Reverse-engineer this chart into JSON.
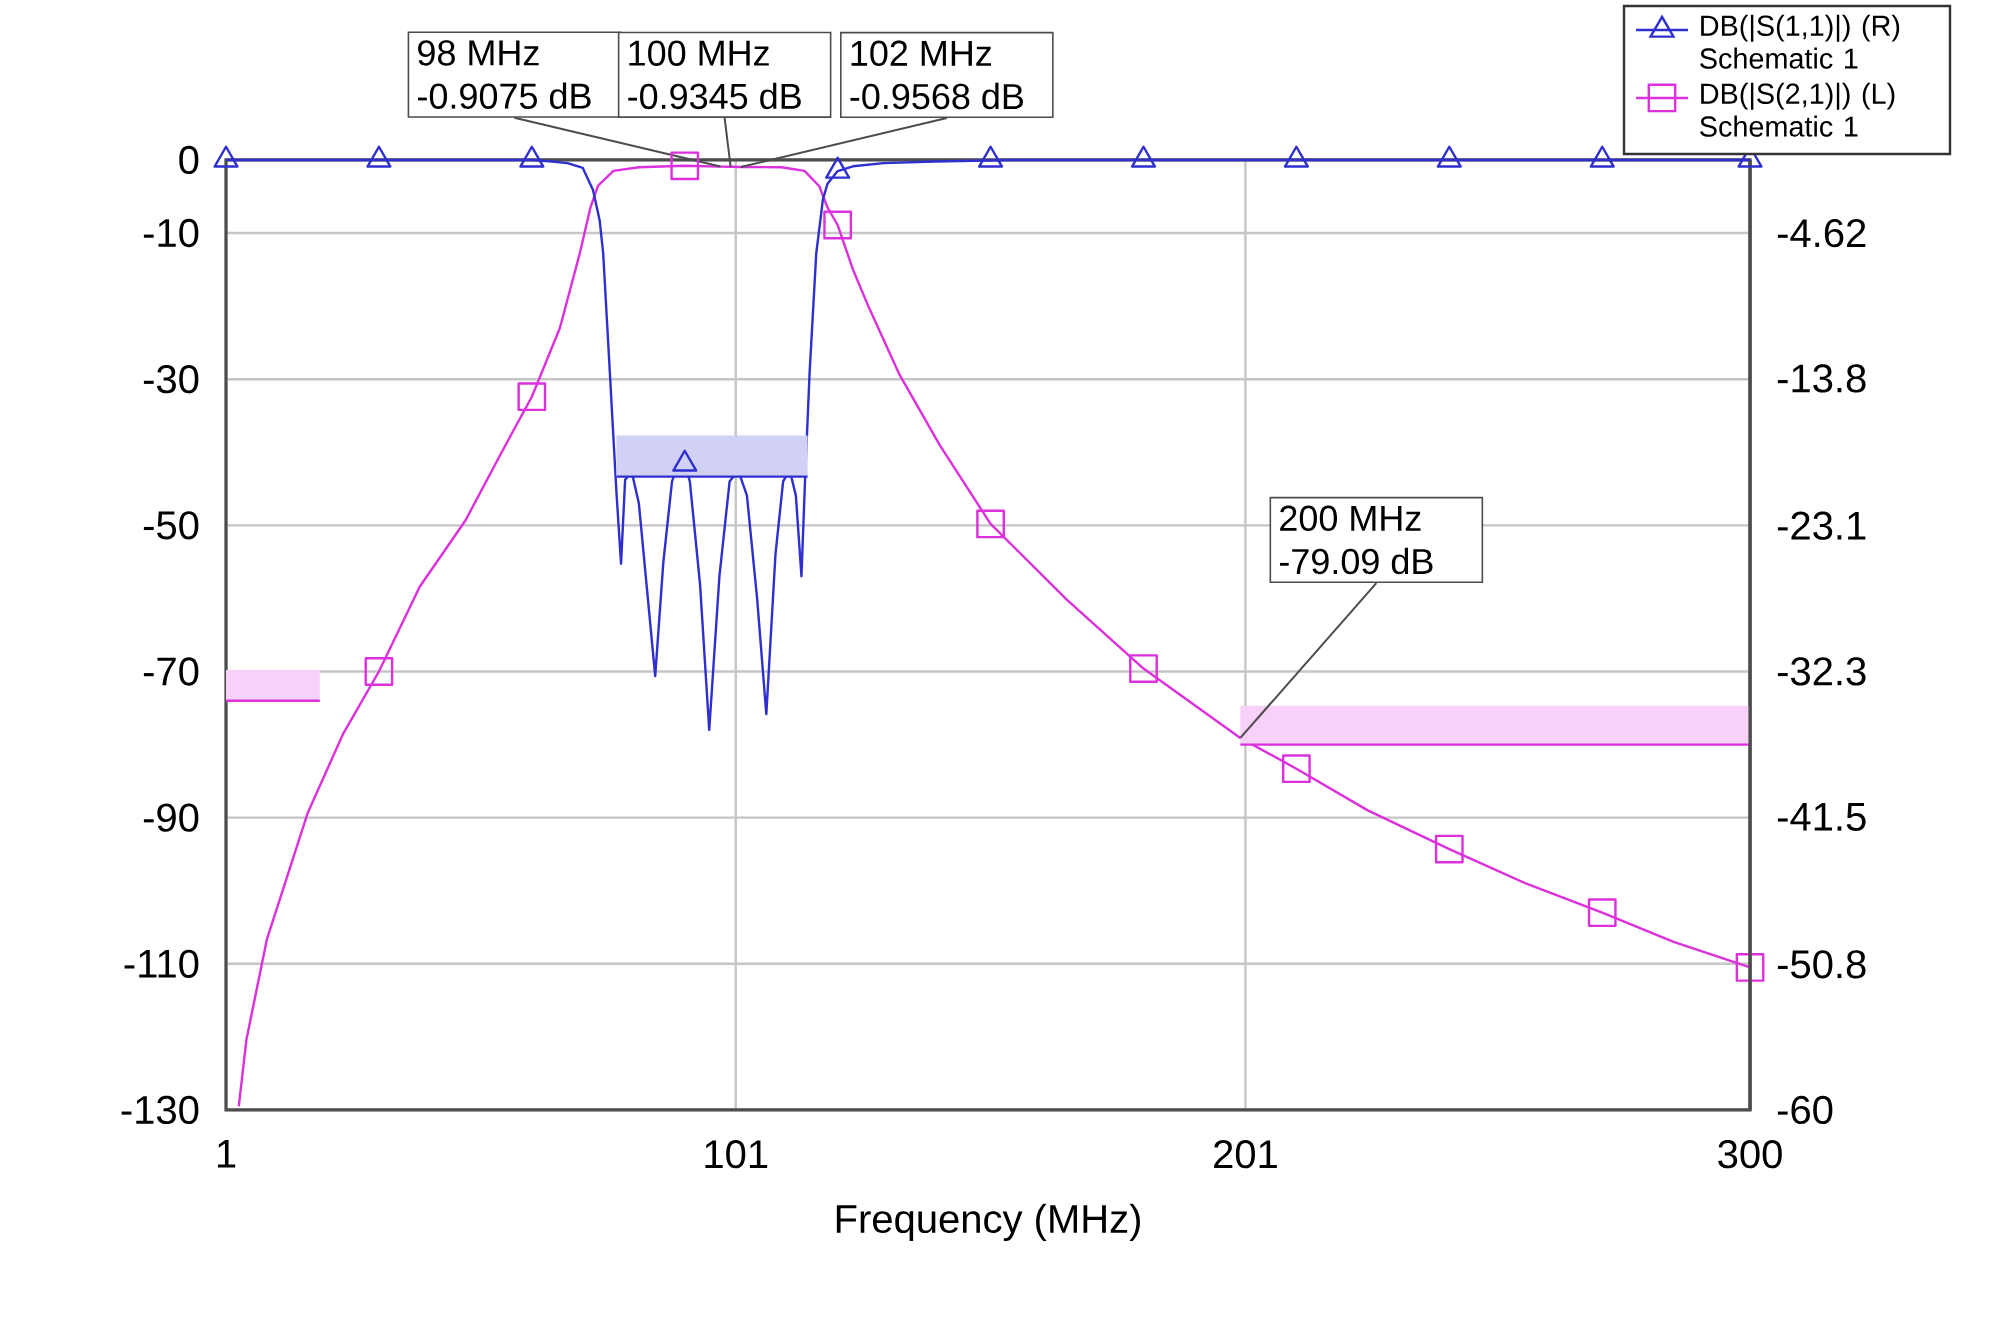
{
  "chart_data": {
    "type": "line",
    "xlabel": "Frequency (MHz)",
    "xlim": [
      1,
      300
    ],
    "xticks": [
      1,
      101,
      201,
      300
    ],
    "ylim": [
      -130,
      0
    ],
    "yticks": [
      -130,
      -110,
      -90,
      -70,
      -50,
      -30,
      -10,
      0
    ],
    "y2lim": [
      -60,
      0
    ],
    "y2ticks": [
      -60,
      -50.8,
      -41.5,
      -32.3,
      -23.1,
      -13.8,
      -4.62
    ],
    "grid": true,
    "legend": "top right",
    "series": [
      {
        "name": "DB(|S(1,1)|) (R) Schematic 1",
        "color": "#2f2fd0",
        "axis": "y2",
        "x": [
          1,
          31,
          61,
          65,
          68,
          71,
          73,
          74.3,
          75,
          75.5,
          76.3,
          77,
          77.6,
          78.5,
          79.3,
          80.6,
          82,
          83.5,
          85.2,
          86.8,
          88.5,
          90.3,
          91,
          92,
          94,
          95.8,
          97.8,
          99.8,
          101.5,
          103.2,
          105.2,
          107,
          108.8,
          110.3,
          111.6,
          112.8,
          113.9,
          114.6,
          115.5,
          116.8,
          118.1,
          119,
          121,
          124,
          130,
          140,
          155,
          181,
          211,
          241,
          271,
          300
        ],
        "values": [
          0,
          0,
          0,
          -0.1,
          -0.2,
          -0.5,
          -1.9,
          -3.8,
          -5.9,
          -8.8,
          -13.4,
          -17.5,
          -21.0,
          -25.5,
          -20.2,
          -19.7,
          -21.7,
          -26.8,
          -32.6,
          -25.4,
          -20.3,
          -18.7,
          -19.2,
          -20.3,
          -26.8,
          -36.0,
          -26.3,
          -20.3,
          -19.6,
          -21.2,
          -27.7,
          -35.0,
          -24.9,
          -20.3,
          -19.6,
          -21.2,
          -26.3,
          -20.2,
          -13.4,
          -5.9,
          -2.5,
          -1.5,
          -0.7,
          -0.4,
          -0.2,
          -0.1,
          0,
          0,
          0,
          0,
          0,
          0
        ]
      },
      {
        "name": "DB(|S(2,1)|) (L) Schematic 1",
        "color": "#dd30dd",
        "x": [
          3.5,
          5,
          9,
          17,
          24,
          31,
          39,
          48,
          55,
          61,
          66.5,
          70.4,
          72.5,
          74,
          77,
          82,
          91,
          98,
          100,
          102,
          110,
          114.5,
          117.4,
          119,
          121,
          124,
          127,
          133,
          141,
          151,
          166,
          181,
          200,
          211,
          225,
          241,
          256,
          271,
          285,
          300
        ],
        "values": [
          -129.5,
          -120.4,
          -106.7,
          -89.4,
          -78.5,
          -70,
          -58.4,
          -49.3,
          -40.1,
          -32.4,
          -23,
          -12.8,
          -6.5,
          -3.5,
          -1.5,
          -1.0,
          -0.8,
          -0.9075,
          -0.9345,
          -0.9568,
          -1.0,
          -1.5,
          -3.6,
          -6.5,
          -8.9,
          -15,
          -20,
          -29.2,
          -39,
          -49.8,
          -60.2,
          -69.6,
          -79.09,
          -83.3,
          -89,
          -94.3,
          -99,
          -103,
          -107,
          -110.5
        ]
      },
      {
        "type": "scatter",
        "color": "#2f2fd0",
        "axis": "y2",
        "marker": "triangle",
        "x": [
          1,
          31,
          61,
          91,
          121,
          151,
          181,
          211,
          241,
          271,
          300
        ],
        "values": [
          0,
          0,
          0,
          -19.2,
          -0.7,
          0,
          0,
          0,
          0,
          0,
          0
        ]
      },
      {
        "type": "scatter",
        "color": "#dd30dd",
        "marker": "square",
        "x": [
          31,
          61,
          91,
          121,
          151,
          181,
          211,
          241,
          271,
          300
        ],
        "values": [
          -70,
          -32.4,
          -0.8,
          -8.9,
          -49.8,
          -69.6,
          -83.3,
          -94.3,
          -103,
          -110.5
        ]
      },
      {
        "color": "#2f2fd0",
        "axis": "y2",
        "x": [
          77.6,
          115.1
        ],
        "values": [
          -20,
          -20
        ],
        "lower": [
          -20,
          -20
        ],
        "upper": [
          -17.4,
          -17.4
        ]
      },
      {
        "color": "#dd30dd",
        "x": [
          1,
          19.4
        ],
        "values": [
          -74,
          -74
        ],
        "lower": [
          -74,
          -74
        ],
        "upper": [
          -69.8,
          -69.8
        ]
      },
      {
        "color": "#dd30dd",
        "x": [
          200,
          300
        ],
        "values": [
          -80,
          -80
        ],
        "lower": [
          -80,
          -80
        ],
        "upper": [
          -74.7,
          -74.7
        ]
      }
    ],
    "annotations": [
      {
        "text": "98 MHz -0.9075 dB",
        "x": 98,
        "y": -0.9075
      },
      {
        "text": "100 MHz -0.9345 dB",
        "x": 100,
        "y": -0.9345
      },
      {
        "text": "102 MHz -0.9568 dB",
        "x": 102,
        "y": -0.9568
      },
      {
        "text": "200 MHz -79.09 dB",
        "x": 200,
        "y": -79.09
      }
    ]
  }
}
